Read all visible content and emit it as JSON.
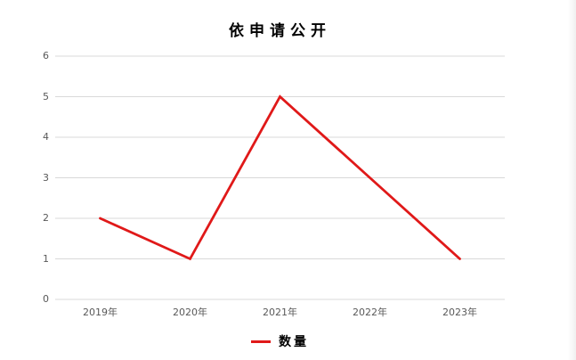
{
  "chart_data": {
    "type": "line",
    "title": "依申请公开",
    "categories": [
      "2019年",
      "2020年",
      "2021年",
      "2022年",
      "2023年"
    ],
    "series": [
      {
        "name": "数量",
        "values": [
          2,
          1,
          5,
          3,
          1
        ],
        "color": "#e01919"
      }
    ],
    "xlabel": "",
    "ylabel": "",
    "ylim": [
      0,
      6
    ],
    "ytick_interval": 1,
    "yticks": [
      0,
      1,
      2,
      3,
      4,
      5,
      6
    ],
    "grid": "horizontal",
    "legend_position": "bottom",
    "colors": {
      "series": "#e01919",
      "gridline": "#d9d9d9",
      "axis_labels": "#595959",
      "title_text": "#000000",
      "background": "#ffffff"
    }
  }
}
